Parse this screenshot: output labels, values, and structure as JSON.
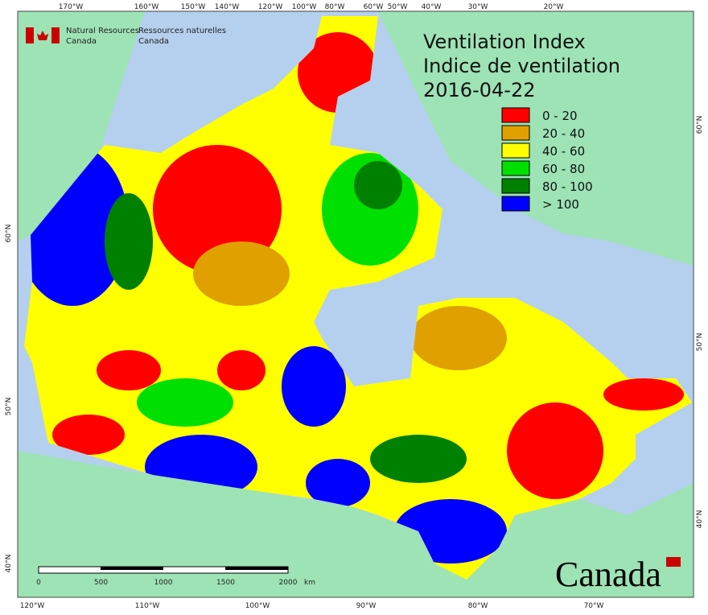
{
  "header": {
    "en": [
      "Natural Resources",
      "Canada"
    ],
    "fr": [
      "Ressources naturelles",
      "Canada"
    ]
  },
  "title": [
    "Ventilation Index",
    "Indice de ventilation",
    "2016-04-22"
  ],
  "legend": [
    {
      "label": "0 - 20",
      "color": "#ff0000"
    },
    {
      "label": "20 - 40",
      "color": "#e0a000"
    },
    {
      "label": "40 - 60",
      "color": "#ffff00"
    },
    {
      "label": "60 - 80",
      "color": "#00e000"
    },
    {
      "label": "80 - 100",
      "color": "#008000"
    },
    {
      "label": "> 100",
      "color": "#0000ff"
    }
  ],
  "top_labels": [
    "170°W",
    "160°W",
    "150°W",
    "140°W",
    "120°W",
    "100°W",
    "80°W",
    "60°W",
    "50°W",
    "40°W",
    "30°W",
    "20°W"
  ],
  "bottom_labels": [
    "120°W",
    "110°W",
    "100°W",
    "90°W",
    "80°W",
    "70°W"
  ],
  "left_labels": [
    "60°N",
    "50°N",
    "40°N"
  ],
  "right_labels": [
    "60°N",
    "50°N",
    "40°N"
  ],
  "scale": {
    "ticks": [
      "0",
      "500",
      "1000",
      "1500",
      "2000"
    ],
    "unit": "km"
  },
  "wordmark": "Canada"
}
